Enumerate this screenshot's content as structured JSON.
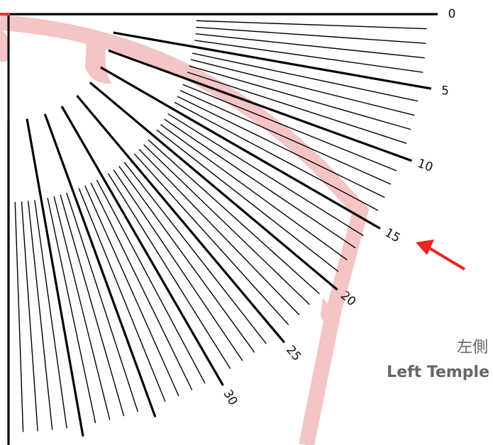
{
  "scale": {
    "labels": [
      "0",
      "5",
      "10",
      "15",
      "20",
      "25",
      "30"
    ]
  },
  "caption": {
    "chinese": "左側",
    "english": "Left Temple"
  }
}
